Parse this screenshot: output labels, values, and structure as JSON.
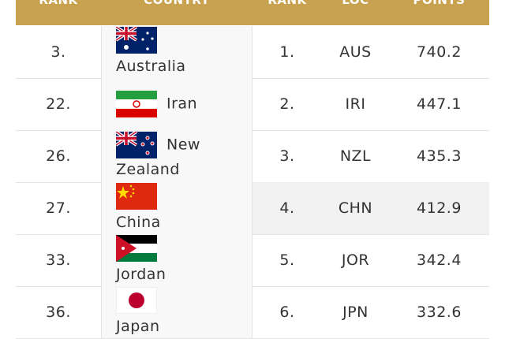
{
  "table": {
    "header": [
      "RANK",
      "COUNTRY",
      "RANK",
      "LOC",
      "POINTS"
    ],
    "rows": [
      [
        "3.",
        "Australia",
        "1.",
        "AUS",
        "740.2"
      ],
      [
        "22.",
        "Iran",
        "2.",
        "IRI",
        "447.1"
      ],
      [
        "26.",
        "New Zealand",
        "3.",
        "NZL",
        "435.3"
      ],
      [
        "27.",
        "China",
        "4.",
        "CHN",
        "412.9"
      ],
      [
        "33.",
        "Jordan",
        "5.",
        "JOR",
        "342.4"
      ],
      [
        "36.",
        "Japan",
        "6.",
        "JPN",
        "332.6"
      ]
    ]
  }
}
